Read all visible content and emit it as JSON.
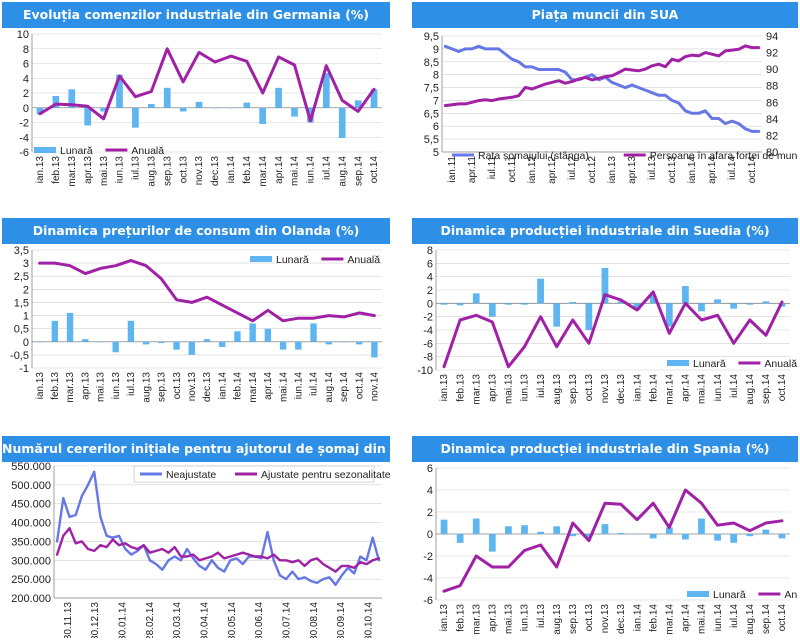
{
  "colors": {
    "bar": "#5eb5f0",
    "line": "#a020a6",
    "line2": "#6677e6",
    "title_bg": "#2e8fe6",
    "grid": "#d0d0d0"
  },
  "chart_data": [
    {
      "type": "bar+line",
      "title": "Evoluția comenzilor industriale din Germania (%)",
      "ylim": [
        -6,
        10
      ],
      "yticks": [
        -6,
        -4,
        -2,
        0,
        2,
        4,
        6,
        8,
        10
      ],
      "categories": [
        "ian.13",
        "feb.13",
        "mar.13",
        "apr.13",
        "mai.13",
        "iun.13",
        "iul.13",
        "aug.13",
        "sep.13",
        "oct.13",
        "nov.13",
        "dec.13",
        "ian.14",
        "feb.14",
        "mar.14",
        "apr.14",
        "mai.14",
        "iun.14",
        "iul.14",
        "aug.14",
        "sep.14",
        "oct.14"
      ],
      "tick_labels": [
        "ian.13",
        "feb.13",
        "mar.13",
        "apr.13",
        "mai.13",
        "iun.13",
        "iul.13",
        "aug.13",
        "sep.13",
        "oct.13",
        "nov.13",
        "dec.13",
        "ian.14",
        "feb.14",
        "mar.14",
        "apr.14",
        "mai.14",
        "iun.14",
        "iul.14",
        "aug.14",
        "sep.14",
        "oct.14"
      ],
      "series": [
        {
          "name": "Lunară",
          "kind": "bar",
          "values": [
            -0.9,
            1.6,
            2.5,
            -2.4,
            -0.5,
            4.5,
            -2.7,
            0.5,
            2.7,
            -0.5,
            0.8,
            0.0,
            0.0,
            0.7,
            -2.2,
            2.7,
            -1.2,
            -2.0,
            4.7,
            -4.1,
            1.0,
            2.5
          ]
        },
        {
          "name": "Anuală",
          "kind": "line",
          "values": [
            -0.8,
            0.5,
            0.4,
            0.2,
            -1.5,
            4.3,
            1.5,
            2.2,
            8.0,
            3.5,
            7.5,
            6.2,
            7.0,
            6.3,
            2.0,
            6.9,
            5.8,
            -1.8,
            5.7,
            1.0,
            -0.5,
            2.5
          ]
        }
      ],
      "legend": "bottom-left"
    },
    {
      "type": "line-dual-axis",
      "title": "Piața muncii din SUA",
      "ylim": [
        5,
        9.5
      ],
      "yticks": [
        5,
        5.5,
        6,
        6.5,
        7,
        7.5,
        8,
        8.5,
        9,
        9.5
      ],
      "y2lim": [
        80,
        94
      ],
      "y2ticks": [
        80,
        82,
        84,
        86,
        88,
        90,
        92,
        94
      ],
      "tick_labels": [
        "ian.11",
        "apr.11",
        "iul.11",
        "oct.11",
        "ian.12",
        "apr.12",
        "iul.12",
        "oct.12",
        "ian.13",
        "apr.13",
        "iul.13",
        "oct.13",
        "ian.14",
        "apr.14",
        "iul.14",
        "oct.14"
      ],
      "series": [
        {
          "name": "Rata șomajului (stânga)",
          "axis": "left",
          "values": [
            9.1,
            9.0,
            8.9,
            9.0,
            9.0,
            9.1,
            9.0,
            9.0,
            9.0,
            8.8,
            8.6,
            8.5,
            8.3,
            8.3,
            8.2,
            8.2,
            8.2,
            8.2,
            8.1,
            7.8,
            7.8,
            7.9,
            8.0,
            7.8,
            7.9,
            7.7,
            7.6,
            7.5,
            7.6,
            7.5,
            7.4,
            7.3,
            7.2,
            7.2,
            7.0,
            6.9,
            6.6,
            6.5,
            6.5,
            6.6,
            6.3,
            6.3,
            6.1,
            6.2,
            6.1,
            5.9,
            5.8,
            5.8
          ]
        },
        {
          "name": "Persoane în afara forței de muncă (mil.)",
          "axis": "right",
          "values": [
            85.6,
            85.7,
            85.8,
            85.8,
            86.0,
            86.2,
            86.3,
            86.2,
            86.4,
            86.5,
            86.6,
            86.8,
            87.8,
            87.6,
            87.9,
            88.2,
            88.4,
            88.6,
            88.3,
            88.5,
            88.8,
            89.0,
            88.7,
            88.9,
            89.1,
            89.2,
            89.6,
            90.0,
            89.9,
            89.8,
            90.0,
            90.4,
            90.6,
            90.3,
            91.2,
            91.0,
            91.5,
            91.7,
            91.6,
            92.0,
            91.8,
            91.6,
            92.2,
            92.3,
            92.4,
            92.8,
            92.6,
            92.6
          ]
        }
      ],
      "legend": "bottom"
    },
    {
      "type": "bar+line",
      "title": "Dinamica prețurilor de consum din Olanda (%)",
      "ylim": [
        -1,
        3.5
      ],
      "yticks": [
        -1,
        -0.5,
        0,
        0.5,
        1,
        1.5,
        2,
        2.5,
        3,
        3.5
      ],
      "categories": [
        "ian.13",
        "feb.13",
        "mar.13",
        "apr.13",
        "mai.13",
        "iun.13",
        "iul.13",
        "aug.13",
        "sep.13",
        "oct.13",
        "nov.13",
        "dec.13",
        "ian.14",
        "feb.14",
        "mar.14",
        "apr.14",
        "mai.14",
        "iun.14",
        "iul.14",
        "aug.14",
        "sep.14",
        "oct.14",
        "nov.14"
      ],
      "tick_labels": [
        "ian.13",
        "feb.13",
        "mar.13",
        "apr.13",
        "mai.13",
        "iun.13",
        "iul.13",
        "aug.13",
        "sep.13",
        "oct.13",
        "nov.13",
        "dec.13",
        "ian.14",
        "feb.14",
        "mar.14",
        "apr.14",
        "mai.14",
        "iun.14",
        "iul.14",
        "aug.14",
        "sep.14",
        "oct.14",
        "nov.14"
      ],
      "series": [
        {
          "name": "Lunară",
          "kind": "bar",
          "values": [
            0.0,
            0.8,
            1.1,
            0.1,
            0.0,
            -0.4,
            0.8,
            -0.1,
            -0.05,
            -0.3,
            -0.5,
            0.1,
            -0.2,
            0.4,
            0.7,
            0.5,
            -0.3,
            -0.3,
            0.7,
            -0.1,
            0.0,
            -0.1,
            -0.6
          ]
        },
        {
          "name": "Anuală",
          "kind": "line",
          "values": [
            3.0,
            3.0,
            2.9,
            2.6,
            2.8,
            2.9,
            3.1,
            2.9,
            2.4,
            1.6,
            1.5,
            1.7,
            1.4,
            1.1,
            0.8,
            1.2,
            0.8,
            0.9,
            0.9,
            1.0,
            0.95,
            1.1,
            1.0
          ]
        }
      ],
      "legend": "top-right"
    },
    {
      "type": "bar+line",
      "title": "Dinamica producției industriale din Suedia (%)",
      "ylim": [
        -10,
        8
      ],
      "yticks": [
        -10,
        -8,
        -6,
        -4,
        -2,
        0,
        2,
        4,
        6,
        8
      ],
      "categories": [
        "ian.13",
        "feb.13",
        "mar.13",
        "apr.13",
        "mai.13",
        "iun.13",
        "iul.13",
        "aug.13",
        "sep.13",
        "oct.13",
        "nov.13",
        "dec.13",
        "ian.14",
        "feb.14",
        "mar.14",
        "apr.14",
        "mai.14",
        "iun.14",
        "iul.14",
        "aug.14",
        "sep.14",
        "oct.14"
      ],
      "tick_labels": [
        "ian.13",
        "feb.13",
        "mar.13",
        "apr.13",
        "mai.13",
        "iun.13",
        "iul.13",
        "aug.13",
        "sep.13",
        "oct.13",
        "nov.13",
        "dec.13",
        "ian.14",
        "feb.14",
        "mar.14",
        "apr.14",
        "mai.14",
        "iun.14",
        "iul.14",
        "aug.14",
        "sep.14",
        "oct.14"
      ],
      "series": [
        {
          "name": "Lunară",
          "kind": "bar",
          "values": [
            -0.2,
            -0.3,
            1.5,
            -2.0,
            -0.2,
            -0.2,
            3.7,
            -3.5,
            0.2,
            -4.0,
            5.3,
            0.3,
            -1.0,
            1.2,
            -3.5,
            2.6,
            -1.2,
            0.6,
            -0.8,
            -0.2,
            0.3,
            -0.5
          ]
        },
        {
          "name": "Anuală",
          "kind": "line",
          "values": [
            -9.5,
            -2.5,
            -1.8,
            -2.8,
            -9.5,
            -6.5,
            -2.0,
            -6.5,
            -2.5,
            -6.0,
            1.3,
            0.5,
            -1.0,
            1.7,
            -4.5,
            0.0,
            -2.5,
            -1.8,
            -6.0,
            -2.5,
            -4.8,
            0.2
          ]
        }
      ],
      "legend": "bottom-right"
    },
    {
      "type": "line",
      "title": "Numărul cererilor inițiale pentru ajutorul de șomaj din SUA",
      "ylim": [
        200000,
        550000
      ],
      "yticks": [
        200000,
        250000,
        300000,
        350000,
        400000,
        450000,
        500000,
        550000
      ],
      "ytick_labels": [
        "200.000",
        "250.000",
        "300.000",
        "350.000",
        "400.000",
        "450.000",
        "500.000",
        "550.000"
      ],
      "tick_labels": [
        "30.11.13",
        "30.12.13",
        "30.01.14",
        "28.02.14",
        "30.03.14",
        "30.04.14",
        "30.05.14",
        "30.06.14",
        "30.07.14",
        "30.08.14",
        "30.09.14",
        "30.10.14"
      ],
      "series": [
        {
          "name": "Neajustate",
          "values": [
            350000,
            465000,
            415000,
            420000,
            470000,
            500000,
            535000,
            415000,
            365000,
            360000,
            365000,
            330000,
            315000,
            325000,
            340000,
            300000,
            290000,
            275000,
            300000,
            310000,
            300000,
            330000,
            305000,
            285000,
            275000,
            300000,
            280000,
            270000,
            300000,
            305000,
            290000,
            310000,
            310000,
            305000,
            375000,
            300000,
            260000,
            250000,
            270000,
            250000,
            255000,
            245000,
            240000,
            250000,
            255000,
            235000,
            260000,
            280000,
            265000,
            310000,
            300000,
            360000,
            300000
          ]
        },
        {
          "name": "Ajustate pentru sezonalitate",
          "values": [
            315000,
            365000,
            385000,
            345000,
            350000,
            330000,
            325000,
            340000,
            335000,
            355000,
            340000,
            345000,
            335000,
            330000,
            340000,
            320000,
            325000,
            330000,
            320000,
            335000,
            310000,
            310000,
            315000,
            300000,
            305000,
            310000,
            320000,
            305000,
            310000,
            315000,
            320000,
            315000,
            310000,
            310000,
            305000,
            315000,
            300000,
            300000,
            295000,
            300000,
            285000,
            300000,
            305000,
            290000,
            280000,
            270000,
            285000,
            285000,
            280000,
            295000,
            290000,
            300000,
            305000
          ]
        }
      ],
      "legend": "top-right"
    },
    {
      "type": "bar+line",
      "title": "Dinamica producției industriale din Spania (%)",
      "ylim": [
        -6,
        6
      ],
      "yticks": [
        -6,
        -4,
        -2,
        0,
        2,
        4,
        6
      ],
      "categories": [
        "ian.13",
        "feb.13",
        "mar.13",
        "apr.13",
        "mai.13",
        "iun.13",
        "iul.13",
        "aug.13",
        "sep.13",
        "oct.13",
        "nov.13",
        "dec.13",
        "ian.14",
        "feb.14",
        "mar.14",
        "apr.14",
        "mai.14",
        "iun.14",
        "iul.14",
        "aug.14",
        "sep.14",
        "oct.14"
      ],
      "tick_labels": [
        "ian.13",
        "feb.13",
        "mar.13",
        "apr.13",
        "mai.13",
        "iun.13",
        "iul.13",
        "aug.13",
        "sep.13",
        "oct.13",
        "nov.13",
        "dec.13",
        "ian.14",
        "feb.14",
        "mar.14",
        "apr.14",
        "mai.14",
        "iun.14",
        "iul.14",
        "aug.14",
        "sep.14",
        "oct.14"
      ],
      "series": [
        {
          "name": "Lunară",
          "kind": "bar",
          "values": [
            1.3,
            -0.8,
            1.4,
            -1.6,
            0.7,
            0.8,
            0.2,
            0.7,
            -0.2,
            -0.3,
            0.9,
            0.1,
            0.0,
            -0.4,
            0.6,
            -0.5,
            1.4,
            -0.6,
            -0.8,
            -0.2,
            0.4,
            -0.4
          ]
        },
        {
          "name": "Anuală",
          "kind": "line",
          "values": [
            -5.2,
            -4.7,
            -2.0,
            -3.0,
            -3.0,
            -1.5,
            -1.0,
            -3.0,
            1.0,
            -0.6,
            2.8,
            2.7,
            1.3,
            2.8,
            0.6,
            4.0,
            2.8,
            0.8,
            1.0,
            0.3,
            1.0,
            1.2
          ]
        }
      ],
      "legend": "bottom-right"
    }
  ]
}
